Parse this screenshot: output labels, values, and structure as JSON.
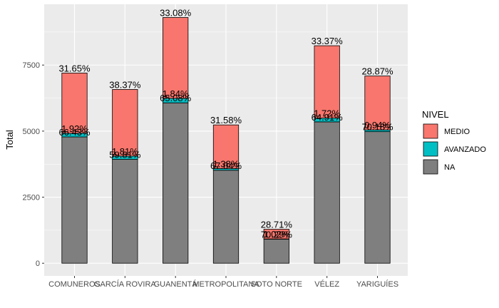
{
  "chart_data": {
    "type": "bar",
    "stacked": true,
    "categories": [
      "COMUNEROS",
      "GARCÍA ROVIRA",
      "GUANENTÁ",
      "METROPOLITANA",
      "SOTO NORTE",
      "VÉLEZ",
      "YARIGUÍES"
    ],
    "series": [
      {
        "name": "NA",
        "color": "#7f7f7f",
        "values": [
          4780,
          3930,
          6070,
          3520,
          910,
          5350,
          4980
        ]
      },
      {
        "name": "AVANZADO",
        "color": "#00bfc4",
        "values": [
          138,
          126,
          170,
          65,
          12,
          142,
          66
        ]
      },
      {
        "name": "MEDIO",
        "color": "#f8766d",
        "values": [
          2280,
          2520,
          3060,
          1650,
          365,
          2740,
          2040
        ]
      }
    ],
    "labels": {
      "NA": [
        "66.43%",
        "59.81%",
        "65.08%",
        "67.04%",
        "70.29%",
        "64.91%",
        "70.18%"
      ],
      "AVANZADO": [
        "1.92%",
        "1.81%",
        "1.84%",
        "1.38%",
        "1.02%",
        "1.72%",
        "0.94%"
      ],
      "MEDIO": [
        "31.65%",
        "38.37%",
        "33.08%",
        "31.58%",
        "28.71%",
        "33.37%",
        "28.87%"
      ]
    },
    "ylabel": "Total",
    "xlabel": "",
    "ylim": [
      -480,
      9800
    ],
    "yticks": [
      0,
      2500,
      5000,
      7500
    ],
    "ytick_labels": [
      "0",
      "2500",
      "5000",
      "7500"
    ],
    "grid": true,
    "legend_position": "right",
    "legend_title": "NIVEL",
    "legend_items": [
      "MEDIO",
      "AVANZADO",
      "NA"
    ],
    "panel_background": "#ebebeb",
    "grid_color": "#ffffff"
  }
}
